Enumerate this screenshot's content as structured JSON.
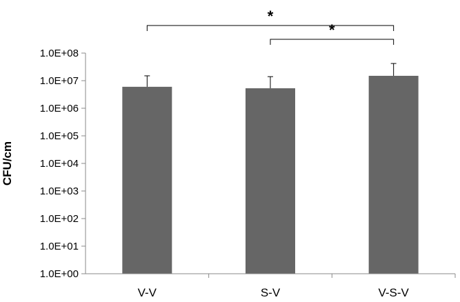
{
  "chart_data": {
    "type": "bar",
    "yscale": "log",
    "ylabel": "CFU/cm",
    "ylim": [
      1,
      100000000
    ],
    "yticks": [
      "1.0E+00",
      "1.0E+01",
      "1.0E+02",
      "1.0E+03",
      "1.0E+04",
      "1.0E+05",
      "1.0E+06",
      "1.0E+07",
      "1.0E+08"
    ],
    "categories": [
      "V-V",
      "S-V",
      "V-S-V"
    ],
    "values": [
      6000000,
      5300000,
      15000000
    ],
    "error_upper": [
      15000000,
      14000000,
      42000000
    ],
    "bar_color": "#666666",
    "grid": false,
    "significance": [
      {
        "from": "V-V",
        "to": "V-S-V",
        "label": "*"
      },
      {
        "from": "S-V",
        "to": "V-S-V",
        "label": "*"
      }
    ]
  }
}
